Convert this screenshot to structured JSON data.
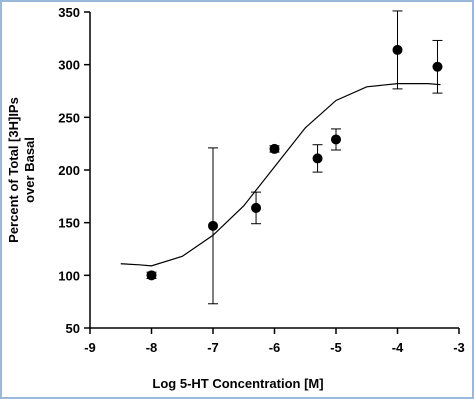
{
  "chart_data": {
    "type": "scatter",
    "x_label": "Log 5-HT Concentration [M]",
    "y_label": [
      "Percent of Total [3H]IPs",
      "over Basal"
    ],
    "x": [
      -8,
      -7,
      -6.3,
      -6,
      -5.3,
      -5,
      -4,
      -3.35
    ],
    "values": [
      100,
      147,
      164,
      220,
      211,
      229,
      314,
      298
    ],
    "errors": [
      3,
      74,
      15,
      3,
      13,
      10,
      37,
      25
    ],
    "color": "#000000",
    "curve": {
      "x": [
        -8.5,
        -8.2,
        -8,
        -7.5,
        -7,
        -6.5,
        -6,
        -5.5,
        -5,
        -4.5,
        -4,
        -3.5,
        -3.3
      ],
      "values": [
        111,
        110,
        109,
        118,
        138,
        166,
        203,
        240,
        266,
        279,
        282,
        282,
        281
      ]
    },
    "xlim": [
      -9,
      -3
    ],
    "xticks": [
      -9,
      -8,
      -7,
      -6,
      -5,
      -4,
      -3
    ],
    "ylim": [
      50,
      350
    ],
    "yticks": [
      50,
      100,
      150,
      200,
      250,
      300,
      350
    ]
  }
}
